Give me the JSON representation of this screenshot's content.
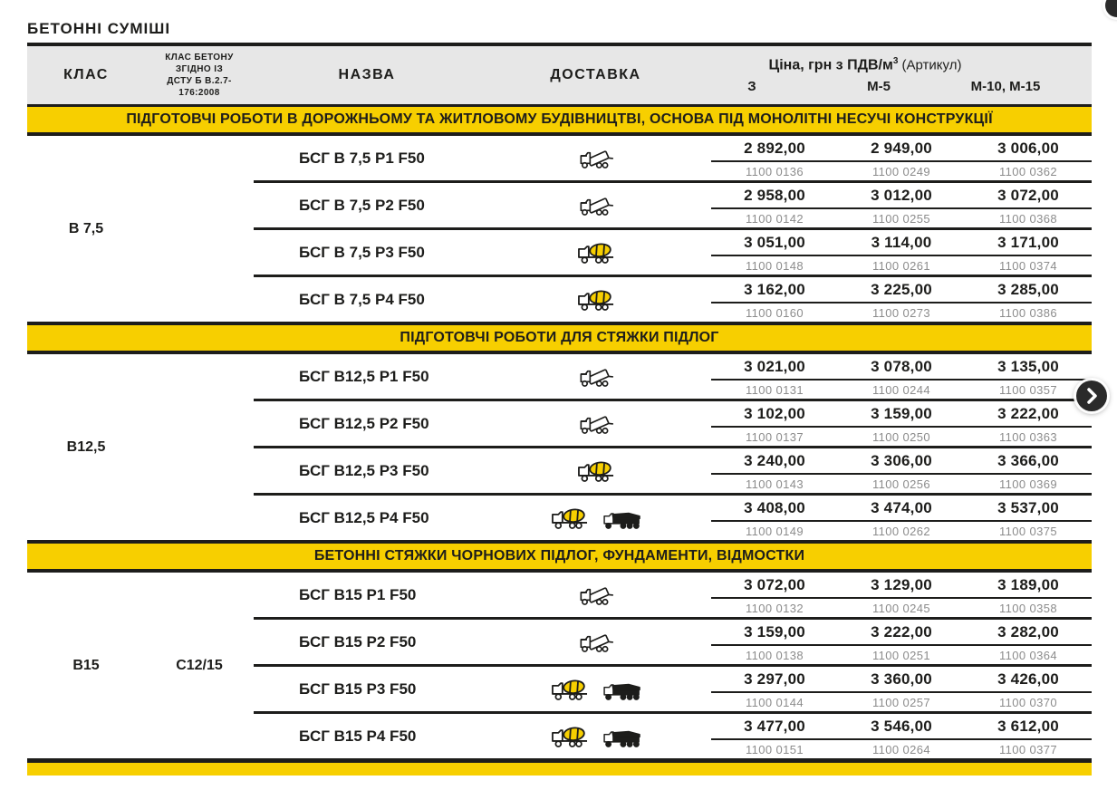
{
  "page": {
    "title": "БЕТОННІ СУМІШІ"
  },
  "colors": {
    "accent_yellow": "#F7CF00",
    "ink": "#1D1D1B",
    "header_bg": "#E7E7E7",
    "muted_gray": "#8C8C8C"
  },
  "header": {
    "col_class": "КЛАС",
    "dstu_lines": [
      "КЛАС БЕТОНУ",
      "ЗГІДНО ІЗ",
      "ДСТУ Б В.2.7-",
      "176:2008"
    ],
    "col_name": "НАЗВА",
    "col_delivery": "ДОСТАВКА",
    "price_header": {
      "prefix": "Ціна, грн з ПДВ/м",
      "sup": "3",
      "suffix": " (Артикул)"
    },
    "price_cols": [
      "З",
      "М-5",
      "М-10, М-15"
    ]
  },
  "icons": {
    "delivery_types": [
      "dump-truck-icon",
      "mixer-truck-icon",
      "pump-truck-icon"
    ],
    "next_button": "chevron-right-icon"
  },
  "sections": [
    {
      "title": "ПІДГОТОВЧІ РОБОТИ В ДОРОЖНЬОМУ ТА ЖИТЛОВОМУ БУДІВНИЦТВІ, ОСНОВА ПІД МОНОЛІТНІ НЕСУЧІ КОНСТРУКЦІЇ",
      "class": "В 7,5",
      "class_dstu": "",
      "rows": [
        {
          "name": "БСГ В 7,5 Р1 F50",
          "delivery": [
            "dump-truck"
          ],
          "prices": [
            "2 892,00",
            "2 949,00",
            "3 006,00"
          ],
          "articles": [
            "1100 0136",
            "1100 0249",
            "1100 0362"
          ]
        },
        {
          "name": "БСГ В 7,5 Р2 F50",
          "delivery": [
            "dump-truck"
          ],
          "prices": [
            "2 958,00",
            "3 012,00",
            "3 072,00"
          ],
          "articles": [
            "1100 0142",
            "1100 0255",
            "1100 0368"
          ]
        },
        {
          "name": "БСГ В 7,5 Р3 F50",
          "delivery": [
            "mixer-truck"
          ],
          "prices": [
            "3 051,00",
            "3 114,00",
            "3 171,00"
          ],
          "articles": [
            "1100 0148",
            "1100 0261",
            "1100 0374"
          ]
        },
        {
          "name": "БСГ В 7,5 Р4 F50",
          "delivery": [
            "mixer-truck"
          ],
          "prices": [
            "3 162,00",
            "3 225,00",
            "3 285,00"
          ],
          "articles": [
            "1100 0160",
            "1100 0273",
            "1100 0386"
          ]
        }
      ]
    },
    {
      "title": "ПІДГОТОВЧІ РОБОТИ ДЛЯ СТЯЖКИ ПІДЛОГ",
      "class": "В12,5",
      "class_dstu": "",
      "rows": [
        {
          "name": "БСГ В12,5 Р1 F50",
          "delivery": [
            "dump-truck"
          ],
          "prices": [
            "3 021,00",
            "3 078,00",
            "3 135,00"
          ],
          "articles": [
            "1100 0131",
            "1100 0244",
            "1100 0357"
          ]
        },
        {
          "name": "БСГ В12,5 Р2 F50",
          "delivery": [
            "dump-truck"
          ],
          "prices": [
            "3 102,00",
            "3 159,00",
            "3 222,00"
          ],
          "articles": [
            "1100 0137",
            "1100 0250",
            "1100 0363"
          ]
        },
        {
          "name": "БСГ В12,5 Р3 F50",
          "delivery": [
            "mixer-truck"
          ],
          "prices": [
            "3 240,00",
            "3 306,00",
            "3 366,00"
          ],
          "articles": [
            "1100 0143",
            "1100 0256",
            "1100 0369"
          ]
        },
        {
          "name": "БСГ В12,5 Р4 F50",
          "delivery": [
            "mixer-truck",
            "pump-truck"
          ],
          "prices": [
            "3 408,00",
            "3 474,00",
            "3 537,00"
          ],
          "articles": [
            "1100 0149",
            "1100 0262",
            "1100 0375"
          ]
        }
      ]
    },
    {
      "title": "БЕТОННІ СТЯЖКИ ЧОРНОВИХ ПІДЛОГ, ФУНДАМЕНТИ, ВІДМОСТКИ",
      "class": "В15",
      "class_dstu": "С12/15",
      "rows": [
        {
          "name": "БСГ В15 Р1 F50",
          "delivery": [
            "dump-truck"
          ],
          "prices": [
            "3 072,00",
            "3 129,00",
            "3 189,00"
          ],
          "articles": [
            "1100 0132",
            "1100 0245",
            "1100 0358"
          ]
        },
        {
          "name": "БСГ В15 Р2 F50",
          "delivery": [
            "dump-truck"
          ],
          "prices": [
            "3 159,00",
            "3 222,00",
            "3 282,00"
          ],
          "articles": [
            "1100 0138",
            "1100 0251",
            "1100 0364"
          ]
        },
        {
          "name": "БСГ В15 Р3 F50",
          "delivery": [
            "mixer-truck",
            "pump-truck"
          ],
          "prices": [
            "3 297,00",
            "3 360,00",
            "3 426,00"
          ],
          "articles": [
            "1100 0144",
            "1100 0257",
            "1100 0370"
          ]
        },
        {
          "name": "БСГ В15 Р4 F50",
          "delivery": [
            "mixer-truck",
            "pump-truck"
          ],
          "prices": [
            "3 477,00",
            "3 546,00",
            "3 612,00"
          ],
          "articles": [
            "1100 0151",
            "1100 0264",
            "1100 0377"
          ]
        }
      ]
    }
  ]
}
